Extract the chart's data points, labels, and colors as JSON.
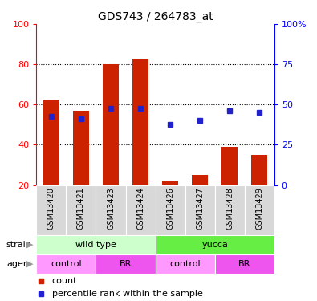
{
  "title": "GDS743 / 264783_at",
  "samples": [
    "GSM13420",
    "GSM13421",
    "GSM13423",
    "GSM13424",
    "GSM13426",
    "GSM13427",
    "GSM13428",
    "GSM13429"
  ],
  "bar_heights": [
    62,
    57,
    80,
    83,
    22,
    25,
    39,
    35
  ],
  "blue_y": [
    54,
    53,
    58,
    58,
    50,
    52,
    57,
    56
  ],
  "bar_color": "#cc2200",
  "blue_color": "#2222cc",
  "ylim_left": [
    20,
    100
  ],
  "ylim_right": [
    0,
    100
  ],
  "yticks_left": [
    20,
    40,
    60,
    80,
    100
  ],
  "ytick_labels_right": [
    "0",
    "25",
    "50",
    "75",
    "100%"
  ],
  "ytick_vals_right": [
    0,
    25,
    50,
    75,
    100
  ],
  "grid_yticks": [
    40,
    60,
    80
  ],
  "strain_labels": [
    "wild type",
    "yucca"
  ],
  "strain_color_light": "#ccffcc",
  "strain_color_dark": "#66ee44",
  "agent_color_light": "#ff99ff",
  "agent_color_dark": "#ee55ee",
  "agent_labels": [
    "control",
    "BR",
    "control",
    "BR"
  ],
  "legend_count_color": "#cc2200",
  "legend_pct_color": "#2222cc",
  "bar_width": 0.55
}
